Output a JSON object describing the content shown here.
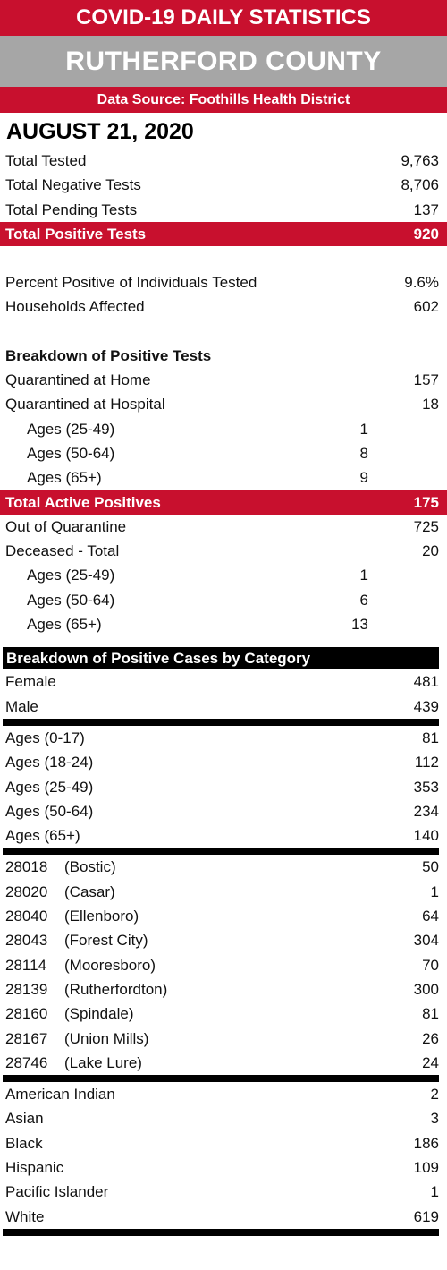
{
  "header": {
    "title": "COVID-19 DAILY STATISTICS",
    "county": "RUTHERFORD COUNTY",
    "source": "Data Source:  Foothills Health District"
  },
  "date": "AUGUST 21, 2020",
  "totals": [
    {
      "label": "Total Tested",
      "value": "9,763"
    },
    {
      "label": "Total Negative Tests",
      "value": "8,706"
    },
    {
      "label": "Total Pending Tests",
      "value": "137"
    }
  ],
  "total_positive": {
    "label": "Total Positive Tests",
    "value": "920"
  },
  "percent_positive": {
    "label": "Percent Positive of Individuals Tested",
    "value": "9.6%"
  },
  "households": {
    "label": "Households Affected",
    "value": "602"
  },
  "breakdown_title": "Breakdown of Positive Tests",
  "quarantined_home": {
    "label": "Quarantined at Home",
    "value": "157"
  },
  "quarantined_hospital": {
    "label": "Quarantined at Hospital",
    "value": "18"
  },
  "hospital_ages": [
    {
      "label": "Ages (25-49)",
      "value": "1"
    },
    {
      "label": "Ages (50-64)",
      "value": "8"
    },
    {
      "label": "Ages (65+)",
      "value": "9"
    }
  ],
  "active_positives": {
    "label": "Total Active Positives",
    "value": "175"
  },
  "out_of_quarantine": {
    "label": "Out of Quarantine",
    "value": "725"
  },
  "deceased": {
    "label": "Deceased - Total",
    "value": "20"
  },
  "deceased_ages": [
    {
      "label": "Ages (25-49)",
      "value": "1"
    },
    {
      "label": "Ages (50-64)",
      "value": "6"
    },
    {
      "label": "Ages (65+)",
      "value": "13"
    }
  ],
  "category_title": "Breakdown of Positive Cases by Category",
  "gender": [
    {
      "label": "Female",
      "value": "481"
    },
    {
      "label": "Male",
      "value": "439"
    }
  ],
  "ages": [
    {
      "label": "Ages (0-17)",
      "value": "81"
    },
    {
      "label": "Ages (18-24)",
      "value": "112"
    },
    {
      "label": "Ages (25-49)",
      "value": "353"
    },
    {
      "label": "Ages (50-64)",
      "value": "234"
    },
    {
      "label": "Ages (65+)",
      "value": "140"
    }
  ],
  "zips": [
    {
      "code": "28018",
      "name": "(Bostic)",
      "value": "50"
    },
    {
      "code": "28020",
      "name": "(Casar)",
      "value": "1"
    },
    {
      "code": "28040",
      "name": "(Ellenboro)",
      "value": "64"
    },
    {
      "code": "28043",
      "name": "(Forest City)",
      "value": "304"
    },
    {
      "code": "28114",
      "name": "(Mooresboro)",
      "value": "70"
    },
    {
      "code": "28139",
      "name": "(Rutherfordton)",
      "value": "300"
    },
    {
      "code": "28160",
      "name": "(Spindale)",
      "value": "81"
    },
    {
      "code": "28167",
      "name": "(Union Mills)",
      "value": "26"
    },
    {
      "code": "28746",
      "name": "(Lake Lure)",
      "value": "24"
    }
  ],
  "race": [
    {
      "label": "American Indian",
      "value": "2"
    },
    {
      "label": "Asian",
      "value": "3"
    },
    {
      "label": "Black",
      "value": "186"
    },
    {
      "label": "Hispanic",
      "value": "109"
    },
    {
      "label": "Pacific Islander",
      "value": "1"
    },
    {
      "label": "White",
      "value": "619"
    }
  ]
}
